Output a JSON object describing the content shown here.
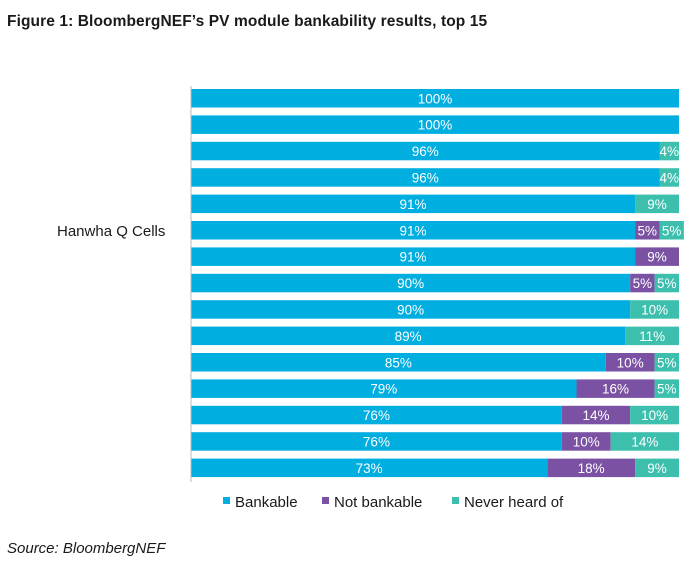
{
  "figure": {
    "title": "Figure 1:  BloombergNEF’s PV module bankability results, top 15",
    "source": "Source: BloombergNEF"
  },
  "chart_data": {
    "type": "bar",
    "orientation": "horizontal",
    "stacked": true,
    "categories": [
      "",
      "",
      "",
      "",
      "",
      "",
      "",
      "",
      "",
      "",
      "",
      "",
      "",
      "",
      ""
    ],
    "category_label": "Hanwha Q Cells",
    "series": [
      {
        "name": "Bankable",
        "color": "#00aee0",
        "values": [
          100,
          100,
          96,
          96,
          91,
          91,
          91,
          90,
          90,
          89,
          85,
          79,
          76,
          76,
          73
        ],
        "labels": [
          "100%",
          "100%",
          "96%",
          "96%",
          "91%",
          "91%",
          "91%",
          "90%",
          "90%",
          "89%",
          "85%",
          "79%",
          "76%",
          "76%",
          "73%"
        ]
      },
      {
        "name": "Not bankable",
        "color": "#7b52a3",
        "values": [
          0,
          0,
          0,
          0,
          0,
          5,
          9,
          5,
          0,
          0,
          10,
          16,
          14,
          10,
          18
        ],
        "labels": [
          "",
          "",
          "",
          "",
          "",
          "5%",
          "9%",
          "5%",
          "",
          "",
          "10%",
          "16%",
          "14%",
          "10%",
          "18%"
        ]
      },
      {
        "name": "Never heard of",
        "color": "#3dbfad",
        "values": [
          0,
          0,
          4,
          4,
          9,
          5,
          0,
          5,
          10,
          11,
          5,
          5,
          10,
          14,
          9
        ],
        "labels": [
          "",
          "",
          "4%",
          "4%",
          "9%",
          "5%",
          "",
          "5%",
          "10%",
          "11%",
          "5%",
          "5%",
          "10%",
          "14%",
          "9%"
        ]
      }
    ],
    "xlim": [
      0,
      100
    ],
    "legend_position": "bottom",
    "grid": false
  }
}
